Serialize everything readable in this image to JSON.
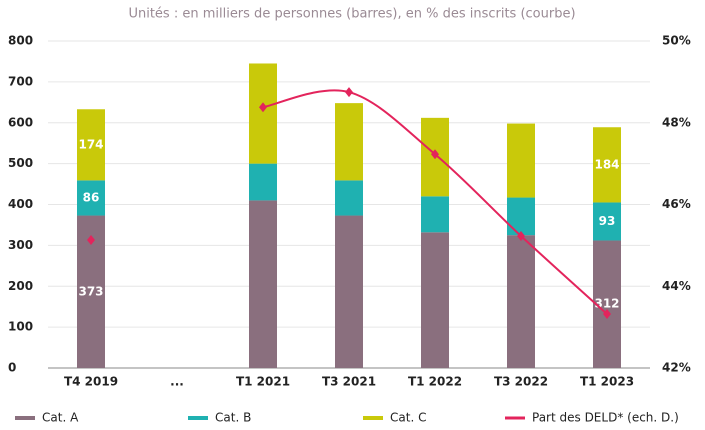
{
  "chart_data": {
    "type": "stacked_bar_line",
    "title": "Unités : en milliers de personnes (barres), en % des inscrits (courbe)",
    "categories": [
      "T4 2019",
      "...",
      "T1 2021",
      "T3 2021",
      "T1 2022",
      "T3 2022",
      "T1 2023"
    ],
    "series": [
      {
        "name": "Cat. A",
        "color": "#8a6f7e",
        "values": [
          373,
          null,
          410,
          373,
          332,
          325,
          312
        ],
        "value_labels": [
          "373",
          null,
          null,
          null,
          null,
          null,
          "312"
        ]
      },
      {
        "name": "Cat. B",
        "color": "#1fb1b1",
        "values": [
          86,
          null,
          90,
          86,
          88,
          92,
          93
        ],
        "value_labels": [
          "86",
          null,
          null,
          null,
          null,
          null,
          "93"
        ]
      },
      {
        "name": "Cat. C",
        "color": "#c9c90a",
        "values": [
          174,
          null,
          245,
          189,
          192,
          181,
          184
        ],
        "value_labels": [
          "174",
          null,
          null,
          null,
          null,
          null,
          "184"
        ]
      },
      {
        "name": "Part des DELD* (ech. D.)",
        "color": "#e3245c",
        "axis": "y2",
        "values": [
          45.13,
          null,
          48.38,
          48.75,
          47.23,
          45.23,
          43.32
        ]
      }
    ],
    "ylim": [
      0,
      800
    ],
    "yticks": [
      0,
      100,
      200,
      300,
      400,
      500,
      600,
      700,
      800
    ],
    "y2lim": [
      42,
      50
    ],
    "y2ticks": [
      {
        "value": 42,
        "label": "42%"
      },
      {
        "value": 44,
        "label": "44%"
      },
      {
        "value": 46,
        "label": "46%"
      },
      {
        "value": 48,
        "label": "48%"
      },
      {
        "value": 50,
        "label": "50%"
      }
    ],
    "grid": true,
    "legend": "bottom"
  }
}
